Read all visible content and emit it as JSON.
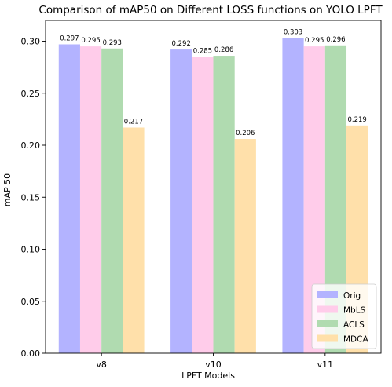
{
  "chart_data": {
    "type": "bar",
    "title": "Comparison of mAP50 on Different LOSS functions on YOLO LPFT",
    "xlabel": "LPFT Models",
    "ylabel": "mAP 50",
    "categories": [
      "v8",
      "v10",
      "v11"
    ],
    "ylim": [
      0,
      0.32
    ],
    "yticks": [
      "0.00",
      "0.05",
      "0.10",
      "0.15",
      "0.20",
      "0.25",
      "0.30"
    ],
    "grid": false,
    "legend_position": "bottom-right",
    "series": [
      {
        "name": "Orig",
        "color": "#b3b3ff",
        "values": [
          0.297,
          0.292,
          0.303
        ],
        "labels": [
          "0.297",
          "0.292",
          "0.303"
        ]
      },
      {
        "name": "MbLS",
        "color": "#ffccea",
        "values": [
          0.295,
          0.285,
          0.295
        ],
        "labels": [
          "0.295",
          "0.285",
          "0.295"
        ]
      },
      {
        "name": "ACLS",
        "color": "#b0dbb0",
        "values": [
          0.293,
          0.286,
          0.296
        ],
        "labels": [
          "0.293",
          "0.286",
          "0.296"
        ]
      },
      {
        "name": "MDCA",
        "color": "#ffe0aa",
        "values": [
          0.217,
          0.206,
          0.219
        ],
        "labels": [
          "0.217",
          "0.206",
          "0.219"
        ]
      }
    ]
  }
}
